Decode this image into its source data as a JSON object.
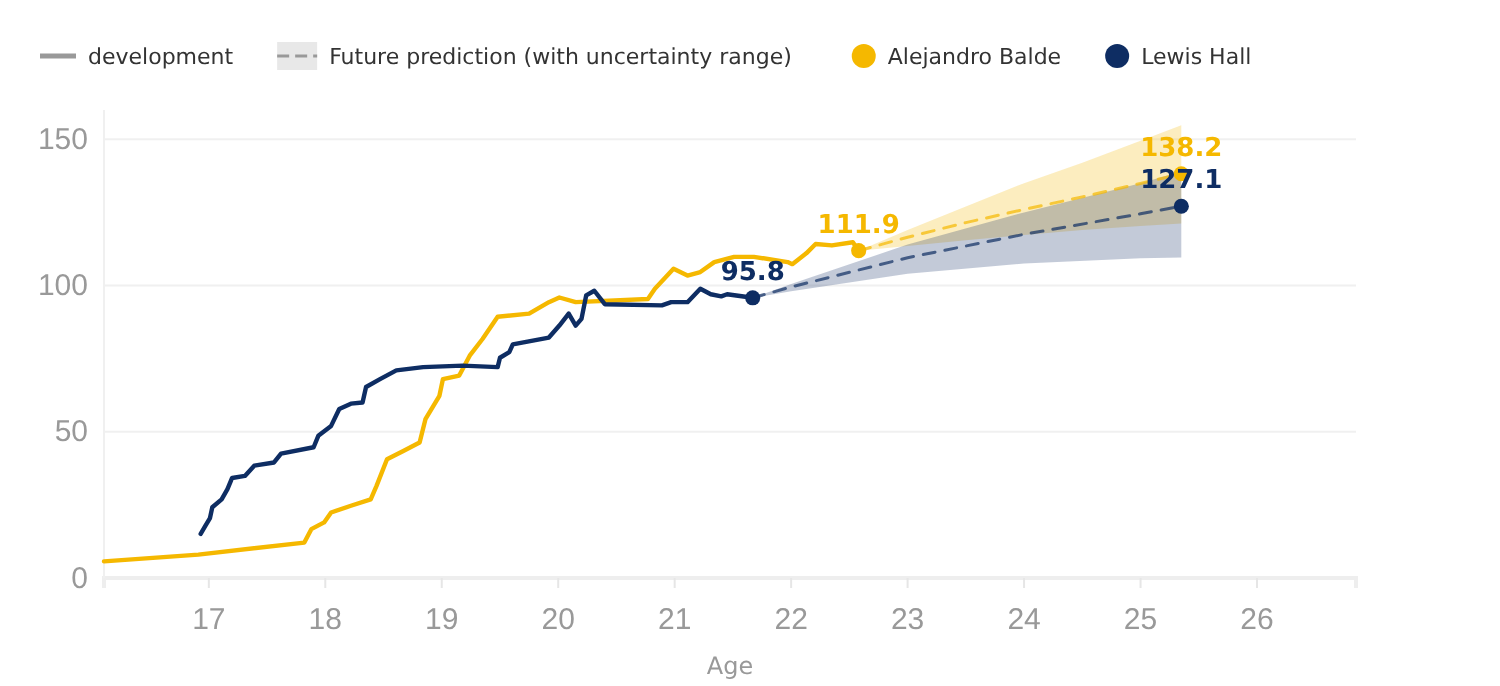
{
  "chart_data": {
    "type": "line",
    "xlabel": "Age",
    "annotations": [
      "development",
      "Future prediction (with uncertainty range)"
    ],
    "xlim": [
      16.1,
      26.85
    ],
    "ylim": [
      0,
      160
    ],
    "xticks": [
      17,
      18,
      19,
      20,
      21,
      22,
      23,
      24,
      25,
      26
    ],
    "yticks": [
      0,
      50,
      100,
      150
    ],
    "grid": "y",
    "legend": "top",
    "series": [
      {
        "color": "#f5b800",
        "line_style": "dashed",
        "x": [
          22.58,
          23,
          23.5,
          24,
          24.5,
          25,
          25.35
        ],
        "values": [
          111.9,
          116.5,
          121.5,
          126,
          130.3,
          134.9,
          138.2
        ],
        "lower": [
          111.9,
          113.5,
          115.5,
          117.3,
          119,
          120.3,
          121.2
        ],
        "upper": [
          111.9,
          119,
          127,
          135,
          142,
          149.5,
          154.8
        ]
      },
      {
        "color": "#0e2d63",
        "line_style": "dashed",
        "x": [
          21.67,
          22,
          23,
          24,
          25,
          25.35
        ],
        "values": [
          95.8,
          99.5,
          109.5,
          117.5,
          124.5,
          127.1
        ],
        "lower": [
          95.8,
          98,
          104,
          107.5,
          109.3,
          109.6
        ],
        "upper": [
          95.8,
          100.5,
          114,
          125,
          135,
          139
        ]
      },
      {
        "name": "Alejandro Balde",
        "color": "#f5b800",
        "line_style": "solid",
        "x": [
          16.1,
          16.91,
          17.82,
          17.88,
          17.99,
          18.05,
          18.22,
          18.39,
          18.44,
          18.53,
          18.67,
          18.81,
          18.86,
          18.98,
          19.01,
          19.15,
          19.24,
          19.35,
          19.48,
          19.75,
          19.92,
          20.01,
          20.15,
          20.77,
          20.83,
          20.99,
          21.11,
          21.22,
          21.34,
          21.51,
          21.68,
          21.97,
          22.01,
          22.13,
          22.21,
          22.35,
          22.53,
          22.58
        ],
        "values": [
          5.7,
          8,
          12.1,
          16.7,
          19,
          22.4,
          24.7,
          26.9,
          31.5,
          40.6,
          43.4,
          46.3,
          54.3,
          62.3,
          68,
          69.2,
          76,
          81.7,
          89.3,
          90.4,
          94.3,
          95.9,
          94.3,
          95.4,
          98.9,
          105.7,
          103.4,
          104.6,
          108,
          109.8,
          109.8,
          108,
          107.3,
          111,
          114.2,
          113.7,
          114.8,
          111.9
        ]
      },
      {
        "name": "Lewis Hall",
        "color": "#0e2d63",
        "line_style": "solid",
        "x": [
          16.93,
          16.97,
          17.01,
          17.03,
          17.11,
          17.16,
          17.2,
          17.31,
          17.39,
          17.56,
          17.62,
          17.9,
          17.94,
          18.05,
          18.12,
          18.22,
          18.32,
          18.35,
          18.47,
          18.61,
          18.84,
          19.18,
          19.48,
          19.5,
          19.58,
          19.61,
          19.92,
          20.01,
          20.09,
          20.15,
          20.2,
          20.24,
          20.31,
          20.4,
          20.89,
          20.97,
          21.11,
          21.22,
          21.31,
          21.4,
          21.45,
          21.67
        ],
        "values": [
          15.1,
          17.8,
          20.5,
          24.2,
          26.9,
          30.4,
          34.2,
          34.9,
          38.4,
          39.5,
          42.5,
          44.7,
          48.6,
          52,
          57.8,
          59.6,
          60,
          65.3,
          68,
          71,
          72.1,
          72.6,
          72.1,
          75.3,
          77.2,
          79.9,
          82.2,
          86.3,
          90.4,
          86.3,
          88.6,
          96.6,
          98.2,
          93.6,
          93.2,
          94.3,
          94.3,
          98.9,
          97,
          96.3,
          97,
          95.8
        ]
      },
      {
        "type": "scatter",
        "color": "#f5b800",
        "marker": "circle",
        "x": [
          22.58,
          25.35
        ],
        "values": [
          111.9,
          138.2
        ],
        "value_labels": [
          "111.9",
          "138.2"
        ]
      },
      {
        "type": "scatter",
        "color": "#0e2d63",
        "marker": "circle",
        "x": [
          21.67,
          25.35
        ],
        "values": [
          95.8,
          127.1
        ],
        "value_labels": [
          "95.8",
          "127.1"
        ]
      }
    ]
  }
}
